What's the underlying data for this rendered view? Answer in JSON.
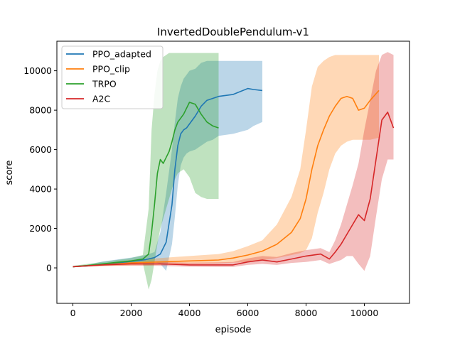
{
  "chart_data": {
    "type": "line",
    "title": "InvertedDoublePendulum-v1",
    "xlabel": "episode",
    "ylabel": "score",
    "xlim": [
      -550,
      11550
    ],
    "ylim": [
      -1800,
      11500
    ],
    "xticks": [
      0,
      2000,
      4000,
      6000,
      8000,
      10000
    ],
    "yticks": [
      0,
      2000,
      4000,
      6000,
      8000,
      10000
    ],
    "xtick_labels": [
      "0",
      "2000",
      "4000",
      "6000",
      "8000",
      "10000"
    ],
    "ytick_labels": [
      "0",
      "2000",
      "4000",
      "6000",
      "8000",
      "10000"
    ],
    "grid": false,
    "legend_position": "top-left",
    "series": [
      {
        "name": "PPO_adapted",
        "color": "#1f77b4",
        "x": [
          0,
          500,
          1000,
          1500,
          2000,
          2500,
          2800,
          3000,
          3200,
          3400,
          3500,
          3600,
          3700,
          3800,
          3900,
          4000,
          4200,
          4400,
          4600,
          4800,
          5000,
          5500,
          6000,
          6200,
          6500
        ],
        "y": [
          60,
          100,
          170,
          250,
          330,
          420,
          520,
          700,
          1300,
          3200,
          5000,
          6200,
          6800,
          7000,
          7100,
          7300,
          7700,
          8200,
          8500,
          8600,
          8700,
          8800,
          9100,
          9050,
          9000
        ],
        "lower": [
          40,
          70,
          120,
          170,
          220,
          260,
          300,
          200,
          -150,
          1200,
          2600,
          4200,
          5200,
          5600,
          5800,
          5900,
          6000,
          6200,
          6400,
          6500,
          6700,
          6800,
          7000,
          7200,
          7400
        ],
        "upper": [
          100,
          150,
          320,
          420,
          520,
          650,
          800,
          1800,
          3800,
          6000,
          7400,
          8600,
          9200,
          9600,
          9800,
          10000,
          10100,
          10400,
          10500,
          10500,
          10500,
          10500,
          10500,
          10500,
          10500
        ]
      },
      {
        "name": "PPO_clip",
        "color": "#ff7f0e",
        "x": [
          0,
          1000,
          2000,
          3000,
          4000,
          5000,
          5500,
          6000,
          6500,
          7000,
          7500,
          7800,
          8000,
          8200,
          8400,
          8600,
          8800,
          9000,
          9200,
          9400,
          9600,
          9800,
          10000,
          10200,
          10500
        ],
        "y": [
          60,
          150,
          250,
          300,
          350,
          400,
          500,
          650,
          850,
          1200,
          1800,
          2500,
          3500,
          5000,
          6200,
          7000,
          7700,
          8200,
          8600,
          8700,
          8600,
          8000,
          8100,
          8500,
          9000
        ],
        "lower": [
          40,
          90,
          120,
          150,
          200,
          230,
          260,
          300,
          380,
          500,
          650,
          750,
          900,
          1500,
          2800,
          3800,
          5000,
          5800,
          6200,
          6400,
          6500,
          6500,
          6500,
          6500,
          6600
        ],
        "upper": [
          90,
          220,
          400,
          500,
          600,
          700,
          850,
          1100,
          1400,
          2200,
          3600,
          5000,
          7000,
          9200,
          10200,
          10500,
          10700,
          10800,
          10800,
          10800,
          10800,
          10800,
          10800,
          10800,
          10800
        ]
      },
      {
        "name": "TRPO",
        "color": "#2ca02c",
        "x": [
          0,
          500,
          1000,
          1500,
          2000,
          2400,
          2600,
          2700,
          2800,
          2900,
          3000,
          3100,
          3200,
          3300,
          3400,
          3500,
          3600,
          3800,
          4000,
          4200,
          4400,
          4600,
          4800,
          5000
        ],
        "y": [
          60,
          120,
          200,
          280,
          350,
          450,
          700,
          1800,
          3200,
          4800,
          5500,
          5300,
          5600,
          5900,
          6400,
          7000,
          7400,
          7800,
          8400,
          8300,
          7800,
          7400,
          7200,
          7100
        ],
        "lower": [
          40,
          80,
          130,
          180,
          220,
          250,
          -1100,
          -600,
          300,
          1200,
          2000,
          2500,
          3000,
          3500,
          4000,
          4500,
          4800,
          5000,
          4600,
          3800,
          3600,
          3500,
          3500,
          3500
        ],
        "upper": [
          100,
          200,
          300,
          400,
          500,
          650,
          3000,
          7000,
          8800,
          10000,
          10500,
          10700,
          10800,
          10900,
          10900,
          10900,
          10900,
          10900,
          10900,
          10900,
          10900,
          10900,
          10900,
          10900
        ]
      },
      {
        "name": "A2C",
        "color": "#d62728",
        "x": [
          0,
          1000,
          2000,
          3000,
          4000,
          5000,
          5500,
          6000,
          6500,
          7000,
          7500,
          8000,
          8500,
          8800,
          9000,
          9200,
          9400,
          9600,
          9800,
          10000,
          10200,
          10400,
          10600,
          10800,
          11000
        ],
        "y": [
          60,
          150,
          200,
          200,
          150,
          150,
          150,
          300,
          400,
          300,
          450,
          600,
          700,
          450,
          800,
          1200,
          1700,
          2200,
          2700,
          2400,
          3500,
          5500,
          7500,
          7900,
          7100
        ],
        "lower": [
          40,
          100,
          120,
          100,
          60,
          50,
          50,
          150,
          200,
          150,
          250,
          300,
          400,
          200,
          300,
          400,
          600,
          600,
          200,
          -150,
          600,
          2600,
          4500,
          5500,
          5500
        ],
        "upper": [
          90,
          200,
          280,
          300,
          260,
          280,
          300,
          480,
          600,
          550,
          750,
          900,
          1000,
          800,
          1400,
          2200,
          3200,
          4200,
          5300,
          7000,
          8500,
          10000,
          10800,
          10950,
          10800
        ]
      }
    ]
  }
}
